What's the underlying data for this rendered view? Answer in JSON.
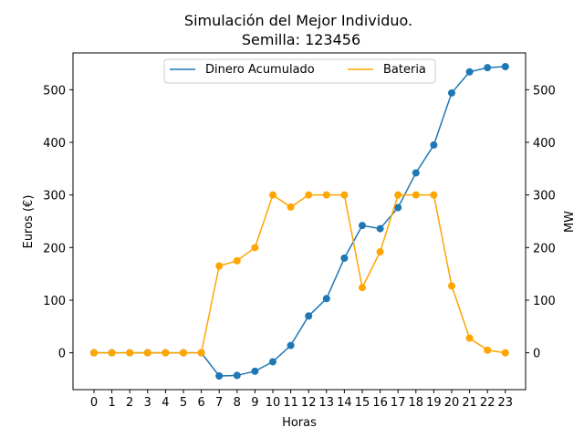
{
  "chart_data": {
    "type": "line",
    "title": "Simulación del Mejor Individuo.",
    "subtitle": "Semilla: 123456",
    "xlabel": "Horas",
    "ylabel_left": "Euros (€)",
    "ylabel_right": "MW",
    "x": [
      0,
      1,
      2,
      3,
      4,
      5,
      6,
      7,
      8,
      9,
      10,
      11,
      12,
      13,
      14,
      15,
      16,
      17,
      18,
      19,
      20,
      21,
      22,
      23
    ],
    "x_ticks": [
      "0",
      "1",
      "2",
      "3",
      "4",
      "5",
      "6",
      "7",
      "8",
      "9",
      "10",
      "11",
      "12",
      "13",
      "14",
      "15",
      "16",
      "17",
      "18",
      "19",
      "20",
      "21",
      "22",
      "23"
    ],
    "ylim": [
      -70,
      570
    ],
    "y_ticks": [
      "0",
      "100",
      "200",
      "300",
      "400",
      "500"
    ],
    "y_tick_values": [
      0,
      100,
      200,
      300,
      400,
      500
    ],
    "grid": false,
    "legend_placement": "top-center",
    "series": [
      {
        "name": "Dinero Acumulado",
        "axis": "left",
        "color": "#1f77b4",
        "values": [
          0,
          0,
          0,
          0,
          0,
          0,
          0,
          -44,
          -43,
          -35,
          -17,
          14,
          70,
          103,
          180,
          242,
          236,
          276,
          342,
          395,
          494,
          534,
          542,
          544
        ]
      },
      {
        "name": "Bateria",
        "axis": "right",
        "color": "#ffa500",
        "values": [
          0,
          0,
          0,
          0,
          0,
          0,
          0,
          165,
          175,
          200,
          300,
          277,
          300,
          300,
          300,
          124,
          192,
          300,
          300,
          300,
          127,
          28,
          5,
          0
        ]
      }
    ]
  }
}
